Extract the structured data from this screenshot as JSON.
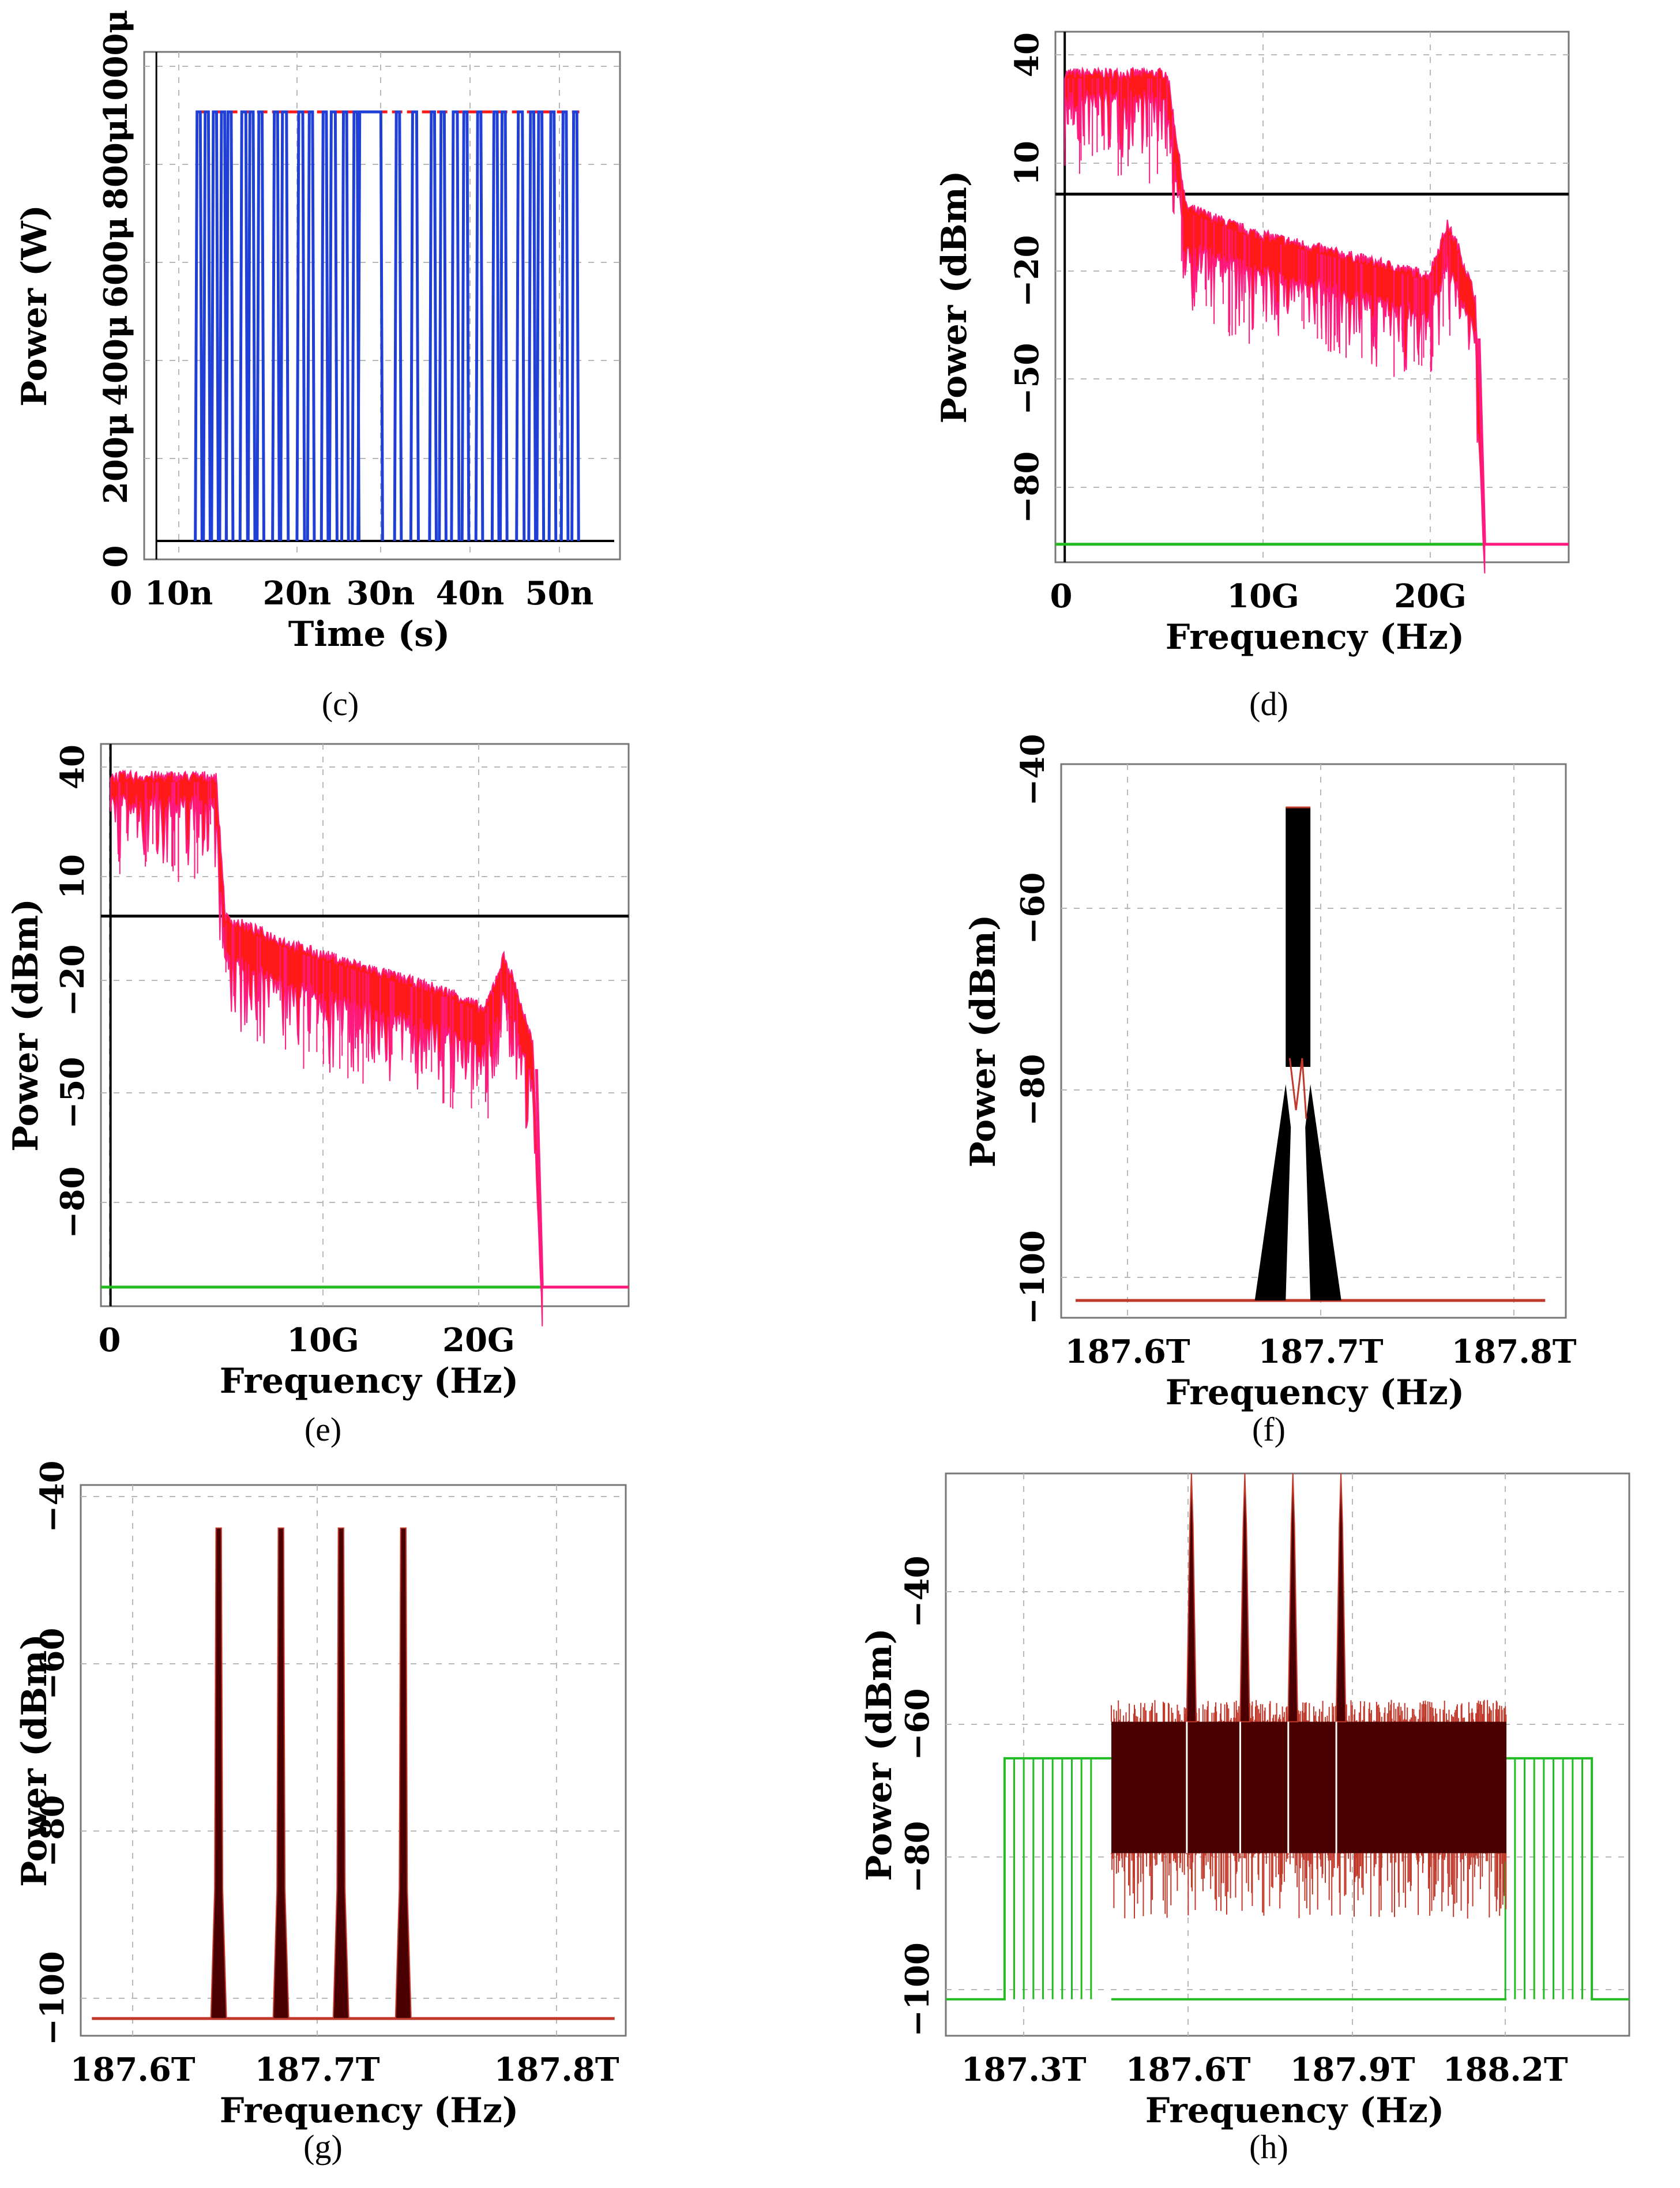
{
  "colors": {
    "blue": "#1f3fd6",
    "red": "#ff1a1a",
    "pink": "#ff1a80",
    "green": "#22bb22",
    "black": "#000000",
    "darkred": "#4a0000",
    "mainred": "#c0392b",
    "grid": "#b8b8b8"
  },
  "chart_data": [
    {
      "id": "c",
      "type": "line",
      "caption": "(c)",
      "xlabel": "Time (s)",
      "ylabel": "Power (W)",
      "xticks": [
        "0",
        "10n",
        "20n",
        "30n",
        "40n",
        "50n"
      ],
      "yticks": [
        "0",
        "200μ",
        "400μ",
        "600μ",
        "800μ",
        "1000μ"
      ],
      "xlim": [
        -1.5e-09,
        5.7e-08
      ],
      "ylim": [
        -2e-05,
        0.00108
      ],
      "grid": true,
      "series": [
        {
          "color": "blue",
          "bit_period": 4e-10,
          "high": 0.00095,
          "low": 2e-05,
          "on_intervals_ns": [
            [
              5,
              5.4
            ],
            [
              6,
              6.4
            ],
            [
              7,
              7.4
            ],
            [
              8,
              8.4
            ],
            [
              8.8,
              9.2
            ],
            [
              10.5,
              11
            ],
            [
              11.5,
              11.9
            ],
            [
              12.6,
              13
            ],
            [
              14.5,
              14.9
            ],
            [
              15.5,
              16
            ],
            [
              17.5,
              18
            ],
            [
              18.8,
              19.2
            ],
            [
              20.5,
              20.9
            ],
            [
              21.5,
              22
            ],
            [
              23,
              23.4
            ],
            [
              24.3,
              24.7
            ],
            [
              25,
              27.6
            ],
            [
              29.5,
              29.9
            ],
            [
              31.5,
              32
            ],
            [
              33.8,
              34.2
            ],
            [
              35,
              35.4
            ],
            [
              36.5,
              37
            ],
            [
              37.8,
              38.2
            ],
            [
              39.5,
              39.9
            ],
            [
              41.5,
              41.9
            ],
            [
              42.5,
              42.9
            ],
            [
              44.5,
              45
            ],
            [
              46,
              46.4
            ],
            [
              47,
              47.4
            ],
            [
              48.5,
              48.9
            ],
            [
              50,
              50.4
            ],
            [
              51.3,
              51.7
            ]
          ]
        }
      ]
    },
    {
      "id": "d",
      "type": "line",
      "caption": "(d)",
      "xlabel": "Frequency (Hz)",
      "ylabel": "Power (dBm)",
      "xticks": [
        "0",
        "10G",
        "20G"
      ],
      "yticks": [
        "40",
        "10",
        "−20",
        "−50",
        "−80"
      ],
      "xlim": [
        -500000000.0,
        27000000000.0
      ],
      "ylim": [
        -102,
        45
      ],
      "grid": true,
      "reference_line_dbm": 0,
      "noise_floor_dbm": -97,
      "cutoff_hz": 22500000000.0,
      "series": [
        {
          "color": "red",
          "envelope": [
            [
              0,
              32
            ],
            [
              5500000000.0,
              32
            ],
            [
              6500000000.0,
              -5
            ],
            [
              10000000000.0,
              -12
            ],
            [
              18000000000.0,
              -22
            ],
            [
              19500000000.0,
              -24
            ],
            [
              20500000000.0,
              -10
            ],
            [
              21000000000.0,
              -15
            ],
            [
              22000000000.0,
              -30
            ],
            [
              22500000000.0,
              -97
            ],
            [
              27000000000.0,
              -97
            ]
          ]
        }
      ]
    },
    {
      "id": "e",
      "type": "line",
      "caption": "(e)",
      "xlabel": "Frequency (Hz)",
      "ylabel": "Power (dBm)",
      "xticks": [
        "0",
        "10G",
        "20G"
      ],
      "yticks": [
        "40",
        "10",
        "−20",
        "−50",
        "−80"
      ],
      "xlim": [
        -500000000.0,
        27000000000.0
      ],
      "ylim": [
        -102,
        45
      ],
      "grid": true,
      "reference_line_dbm": 0,
      "noise_floor_dbm": -97,
      "cutoff_hz": 22500000000.0,
      "series": [
        {
          "color": "red",
          "envelope": [
            [
              0,
              35
            ],
            [
              5500000000.0,
              35
            ],
            [
              6000000000.0,
              -2
            ],
            [
              10000000000.0,
              -10
            ],
            [
              18000000000.0,
              -22
            ],
            [
              19500000000.0,
              -26
            ],
            [
              20500000000.0,
              -12
            ],
            [
              21000000000.0,
              -18
            ],
            [
              22000000000.0,
              -35
            ],
            [
              22500000000.0,
              -97
            ],
            [
              27000000000.0,
              -97
            ]
          ]
        }
      ]
    },
    {
      "id": "f",
      "type": "line",
      "caption": "(f)",
      "xlabel": "Frequency (Hz)",
      "ylabel": "Power (dBm)",
      "xticks": [
        "187.6T",
        "187.7T",
        "187.8T"
      ],
      "yticks": [
        "−40",
        "−60",
        "−80",
        "−100"
      ],
      "xlim": [
        187585000000000.0,
        187830000000000.0
      ],
      "ylim": [
        -102,
        -38
      ],
      "grid": true,
      "series": [
        {
          "color": "black",
          "center_hz": 187700000000000.0,
          "peak_dbm": -43,
          "floor_dbm": -100
        }
      ]
    },
    {
      "id": "g",
      "type": "line",
      "caption": "(g)",
      "xlabel": "Frequency (Hz)",
      "ylabel": "Power (dBm)",
      "xticks": [
        "187.6T",
        "187.7T",
        "187.8T"
      ],
      "yticks": [
        "−40",
        "−60",
        "−80",
        "−100"
      ],
      "xlim": [
        187585000000000.0,
        187830000000000.0
      ],
      "ylim": [
        -102,
        -38
      ],
      "grid": true,
      "series": [
        {
          "color": "darkred",
          "peaks_hz": [
            187647000000000.0,
            187675000000000.0,
            187702000000000.0,
            187730000000000.0
          ],
          "peak_dbm": -43,
          "floor_dbm": -100
        }
      ]
    },
    {
      "id": "h",
      "type": "line",
      "caption": "(h)",
      "xlabel": "Frequency (Hz)",
      "ylabel": "Power (dBm)",
      "xticks": [
        "187.3T",
        "187.6T",
        "187.9T",
        "188.2T"
      ],
      "yticks": [
        "−40",
        "−60",
        "−80",
        "−100"
      ],
      "xlim": [
        187140000000000.0,
        188420000000000.0
      ],
      "ylim": [
        -105,
        -28
      ],
      "grid": true,
      "series": [
        {
          "color": "darkred",
          "band_hz": [
            187450000000000.0,
            188190000000000.0
          ],
          "band_top_dbm": -62,
          "band_bottom_dbm": -80,
          "peaks_hz": [
            187600000000000.0,
            187700000000000.0,
            187790000000000.0,
            187880000000000.0
          ],
          "peak_dbm": -28
        },
        {
          "color": "green",
          "plateau_dbm": -67,
          "floor_dbm": -100,
          "plateau_hz": [
            187250000000000.0,
            188350000000000.0
          ]
        }
      ]
    }
  ]
}
